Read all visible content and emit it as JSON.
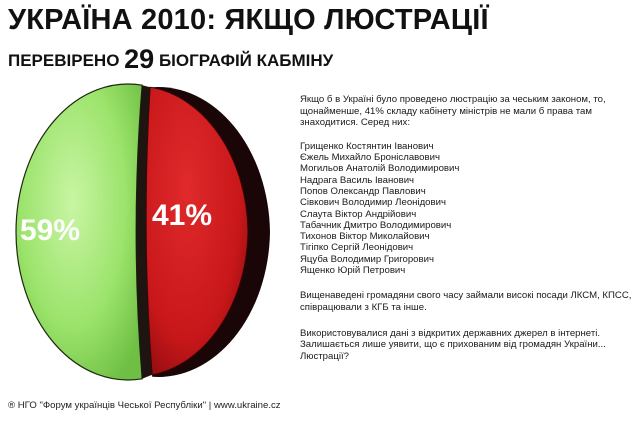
{
  "header": {
    "title": "УКРАЇНА 2010: ЯКЩО ЛЮСТРАЦІЇ",
    "subtitle_prefix": "ПЕРЕВІРЕНО",
    "subtitle_number": "29",
    "subtitle_suffix": "БІОГРАФІЙ КАБМІНУ"
  },
  "chart_data": {
    "type": "pie",
    "slices": [
      {
        "label": "59%",
        "value": 59,
        "color": "#9be36b"
      },
      {
        "label": "41%",
        "value": 41,
        "color": "#c8171a"
      }
    ]
  },
  "text": {
    "intro": "Якщо б в Україні було проведено люстрацію за чеським законом, то, щонайменше, 41% складу кабінету міністрів не мали б права там знаходитися. Серед них:",
    "names": [
      "Грищенко Костянтин Іванович",
      "Єжель Михайло Броніславович",
      "Могильов Анатолій Володимирович",
      "Надрага Василь Іванович",
      "Попов Олександр Павлович",
      "Сівкович Володимир Леонідович",
      "Слаута Віктор Андрійович",
      "Табачник Дмитро Володимирович",
      "Тихонов Віктор Миколайович",
      "Тігіпко Сергій Леонідович",
      "Яцуба Володимир Григорович",
      "Ященко Юрій Петрович"
    ],
    "paragraph2": "Вищенаведені громадяни свого часу займали високі посади ЛКСМ, КПСС, співрацювали з КГБ та інше.",
    "paragraph3": "Використовувалися дані з відкритих державних джерел в інтернеті. Залишається лише уявити, що є прихованим від громадян України... Люстрації?"
  },
  "footer": {
    "text": "® НГО \"Форум українців Чеської Республіки\" | www.ukraine.cz"
  }
}
